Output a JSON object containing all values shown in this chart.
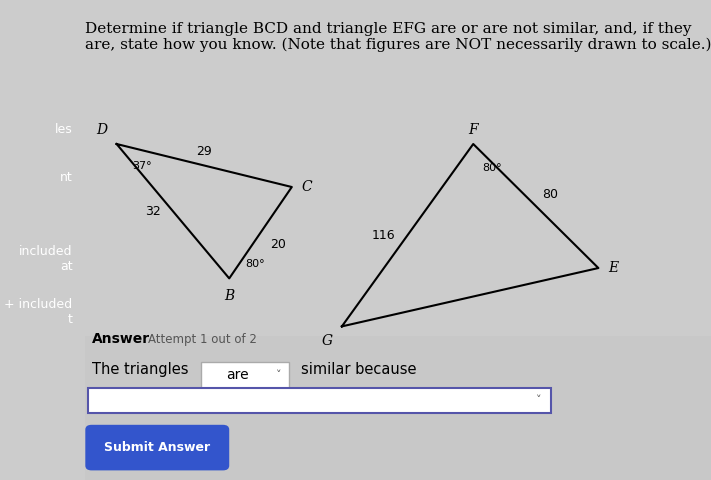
{
  "title_text": "Determine if triangle BCD and triangle EFG are or are not similar, and, if they\nare, state how you know. (Note that figures are NOT necessarily drawn to scale.)",
  "title_fontsize": 11,
  "bg_color": "#d8d8d8",
  "content_bg": "#e8e8e8",
  "tri1": {
    "D": [
      0.0,
      1.0
    ],
    "B": [
      0.55,
      0.0
    ],
    "C": [
      1.0,
      0.65
    ],
    "label_D": "D",
    "label_B": "B",
    "label_C": "C",
    "side_DB": "32",
    "side_DC": "29",
    "side_BC": "20",
    "angle_D": "37°",
    "angle_B": "80°"
  },
  "tri2": {
    "G": [
      0.0,
      0.0
    ],
    "F": [
      0.55,
      1.0
    ],
    "E": [
      1.0,
      0.45
    ],
    "label_G": "G",
    "label_F": "F",
    "label_E": "E",
    "side_GF": "116",
    "side_FE": "80",
    "angle_F": "80°"
  },
  "answer_text": "Answer",
  "attempt_text": "Attempt 1 out of 2",
  "sentence_start": "The triangles",
  "dropdown_value": "are",
  "sentence_end": "similar because",
  "submit_label": "Submit Answer",
  "left_panel_bg": "#3a3a4a",
  "left_panel_labels": [
    "les",
    "nt",
    "included\nat",
    "+ included\nt"
  ]
}
